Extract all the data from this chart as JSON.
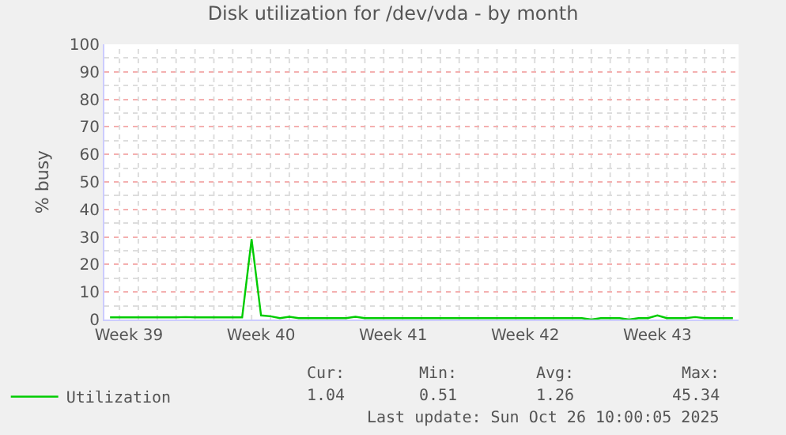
{
  "chart_data": {
    "type": "line",
    "title": "Disk utilization for /dev/vda - by month",
    "ylabel": "% busy",
    "categories": [
      null,
      null,
      "Week 39",
      null,
      null,
      null,
      null,
      null,
      null,
      null,
      null,
      null,
      null,
      null,
      null,
      null,
      "Week 40",
      null,
      null,
      null,
      null,
      null,
      null,
      null,
      null,
      null,
      null,
      null,
      null,
      null,
      "Week 41",
      null,
      null,
      null,
      null,
      null,
      null,
      null,
      null,
      null,
      null,
      null,
      null,
      null,
      "Week 42",
      null,
      null,
      null,
      null,
      null,
      null,
      null,
      null,
      null,
      null,
      null,
      null,
      null,
      "Week 43",
      null,
      null,
      null,
      null,
      null,
      null,
      null,
      null
    ],
    "series": [
      {
        "name": "Utilization",
        "color": "#00cc00",
        "values": [
          0.8,
          0.8,
          0.8,
          0.8,
          0.8,
          0.8,
          0.8,
          0.8,
          0.9,
          0.8,
          0.8,
          0.8,
          0.8,
          0.8,
          0.8,
          29.2,
          1.5,
          1.2,
          0.5,
          1.0,
          0.5,
          0.5,
          0.5,
          0.5,
          0.5,
          0.5,
          1.0,
          0.5,
          0.5,
          0.5,
          0.5,
          0.5,
          0.5,
          0.5,
          0.5,
          0.5,
          0.5,
          0.5,
          0.5,
          0.5,
          0.5,
          0.5,
          0.5,
          0.5,
          0.5,
          0.5,
          0.5,
          0.5,
          0.5,
          0.5,
          0.5,
          0.0,
          0.5,
          0.5,
          0.5,
          0.0,
          0.5,
          0.5,
          1.5,
          0.5,
          0.5,
          0.5,
          0.9,
          0.5,
          0.5,
          0.5,
          0.5
        ]
      }
    ],
    "ylim": [
      0,
      100
    ],
    "yticks": [
      0,
      10,
      20,
      30,
      40,
      50,
      60,
      70,
      80,
      90,
      100
    ],
    "grid": true,
    "legend": "bottom",
    "marker": "none",
    "line_style": "solid",
    "annotations": [
      "Cur:",
      "Min:",
      "Avg:",
      "Max:",
      "1.04",
      "0.51",
      "1.26",
      "45.34",
      "Last update: Sun Oct 26 10:00:05 2025"
    ]
  }
}
